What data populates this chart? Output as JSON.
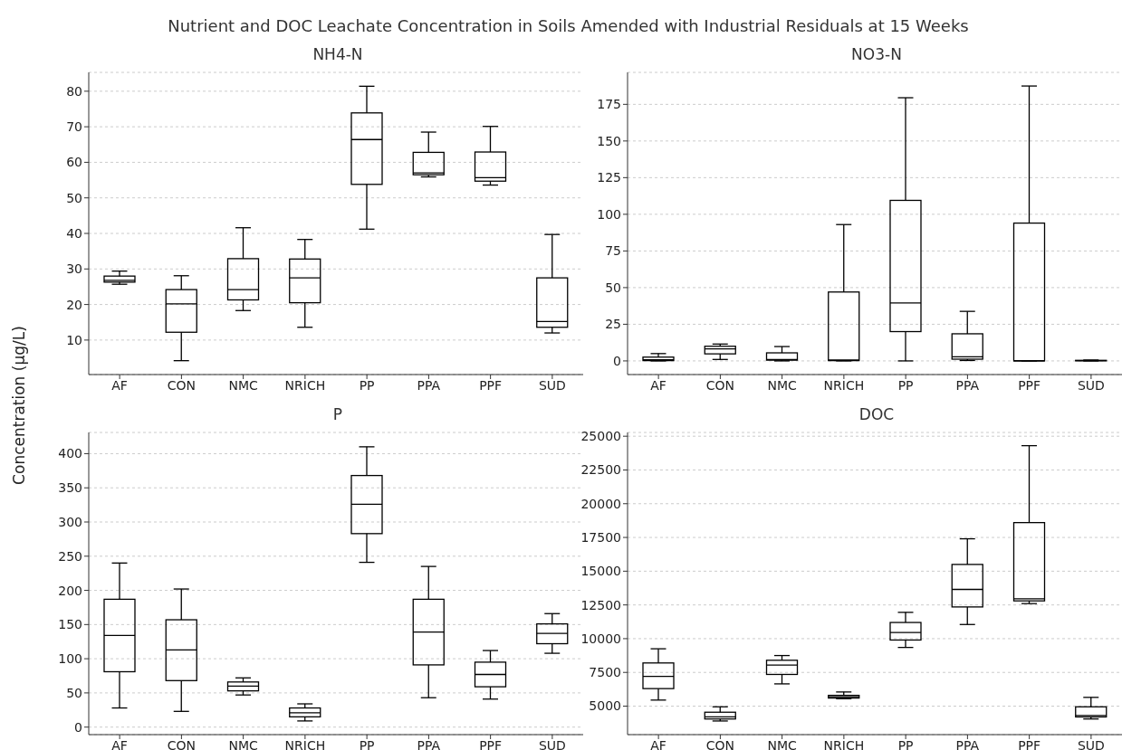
{
  "chart_data": [
    {
      "type": "box",
      "title": "NH4-N",
      "ylabel": "Concentration (µg/L)",
      "annotations": [
        "Nutrient and DOC Leachate Concentration in Soils Amended with Industrial Residuals at 15 Weeks"
      ],
      "categories": [
        "AF",
        "CON",
        "NMC",
        "NRICH",
        "PP",
        "PPA",
        "PPF",
        "SUD"
      ],
      "ylim": [
        0.3,
        85.3
      ],
      "yticks": [
        10,
        20,
        30,
        40,
        50,
        60,
        70,
        80
      ],
      "grid": "y",
      "color": "#000000",
      "boxes": [
        {
          "low": 25.7,
          "q1": 26.3,
          "median": 26.8,
          "q3": 28,
          "high": 29.4
        },
        {
          "low": 4.2,
          "q1": 12.2,
          "median": 20.2,
          "q3": 24.2,
          "high": 28.1
        },
        {
          "low": 18.3,
          "q1": 21.3,
          "median": 24.2,
          "q3": 32.9,
          "high": 41.6
        },
        {
          "low": 13.6,
          "q1": 20.5,
          "median": 27.5,
          "q3": 32.8,
          "high": 38.3
        },
        {
          "low": 41.2,
          "q1": 53.8,
          "median": 66.4,
          "q3": 73.9,
          "high": 81.4
        },
        {
          "low": 55.9,
          "q1": 56.5,
          "median": 57,
          "q3": 62.8,
          "high": 68.5
        },
        {
          "low": 53.6,
          "q1": 54.7,
          "median": 55.7,
          "q3": 62.9,
          "high": 70.1
        },
        {
          "low": 12,
          "q1": 13.6,
          "median": 15.2,
          "q3": 27.5,
          "high": 39.7
        }
      ]
    },
    {
      "type": "box",
      "title": "NO3-N",
      "categories": [
        "AF",
        "CON",
        "NMC",
        "NRICH",
        "PP",
        "PPA",
        "PPF",
        "SUD"
      ],
      "ylim": [
        -9.3,
        196.8
      ],
      "yticks": [
        0,
        25,
        50,
        75,
        100,
        125,
        150,
        175
      ],
      "grid": "y",
      "color": "#000000",
      "boxes": [
        {
          "low": 0,
          "q1": 0.2,
          "median": 0.8,
          "q3": 2.6,
          "high": 5
        },
        {
          "low": 1,
          "q1": 4.8,
          "median": 8.2,
          "q3": 10,
          "high": 11.5
        },
        {
          "low": 0,
          "q1": 0.5,
          "median": 1,
          "q3": 5.5,
          "high": 9.8
        },
        {
          "low": 0,
          "q1": 0.2,
          "median": 0.6,
          "q3": 47,
          "high": 93
        },
        {
          "low": 0,
          "q1": 20,
          "median": 39.5,
          "q3": 109.5,
          "high": 179.5
        },
        {
          "low": 0.3,
          "q1": 1.2,
          "median": 2.8,
          "q3": 18.5,
          "high": 33.8
        },
        {
          "low": 0,
          "q1": 0,
          "median": 0.1,
          "q3": 94,
          "high": 187.5
        },
        {
          "low": 0,
          "q1": 0.1,
          "median": 0.2,
          "q3": 0.4,
          "high": 0.6
        }
      ]
    },
    {
      "type": "box",
      "title": "P",
      "categories": [
        "AF",
        "CON",
        "NMC",
        "NRICH",
        "PP",
        "PPA",
        "PPF",
        "SUD"
      ],
      "ylim": [
        -11,
        431
      ],
      "yticks": [
        0,
        50,
        100,
        150,
        200,
        250,
        300,
        350,
        400
      ],
      "grid": "y",
      "color": "#000000",
      "boxes": [
        {
          "low": 28,
          "q1": 81,
          "median": 134,
          "q3": 187,
          "high": 240
        },
        {
          "low": 23,
          "q1": 68,
          "median": 113,
          "q3": 157,
          "high": 202
        },
        {
          "low": 47,
          "q1": 53,
          "median": 60,
          "q3": 66,
          "high": 72
        },
        {
          "low": 9,
          "q1": 15,
          "median": 21,
          "q3": 28,
          "high": 34
        },
        {
          "low": 241,
          "q1": 283,
          "median": 326,
          "q3": 368,
          "high": 410
        },
        {
          "low": 43,
          "q1": 91,
          "median": 139,
          "q3": 187,
          "high": 235
        },
        {
          "low": 41,
          "q1": 59,
          "median": 77,
          "q3": 95,
          "high": 112
        },
        {
          "low": 108,
          "q1": 122,
          "median": 137,
          "q3": 151,
          "high": 166
        }
      ]
    },
    {
      "type": "box",
      "title": "DOC",
      "categories": [
        "AF",
        "CON",
        "NMC",
        "NRICH",
        "PP",
        "PPA",
        "PPF",
        "SUD"
      ],
      "ylim": [
        2890,
        25280
      ],
      "yticks": [
        5000,
        7500,
        10000,
        12500,
        15000,
        17500,
        20000,
        22500,
        25000
      ],
      "grid": "y",
      "color": "#000000",
      "boxes": [
        {
          "low": 5450,
          "q1": 6300,
          "median": 7200,
          "q3": 8200,
          "high": 9250
        },
        {
          "low": 3900,
          "q1": 4050,
          "median": 4200,
          "q3": 4550,
          "high": 4950
        },
        {
          "low": 6650,
          "q1": 7350,
          "median": 8050,
          "q3": 8400,
          "high": 8750
        },
        {
          "low": 5550,
          "q1": 5600,
          "median": 5700,
          "q3": 5800,
          "high": 6050
        },
        {
          "low": 9350,
          "q1": 9900,
          "median": 10450,
          "q3": 11200,
          "high": 11950
        },
        {
          "low": 11050,
          "q1": 12350,
          "median": 13650,
          "q3": 15500,
          "high": 17400
        },
        {
          "low": 12600,
          "q1": 12800,
          "median": 12950,
          "q3": 18600,
          "high": 24300
        },
        {
          "low": 4050,
          "q1": 4200,
          "median": 4300,
          "q3": 4950,
          "high": 5650
        }
      ]
    }
  ]
}
